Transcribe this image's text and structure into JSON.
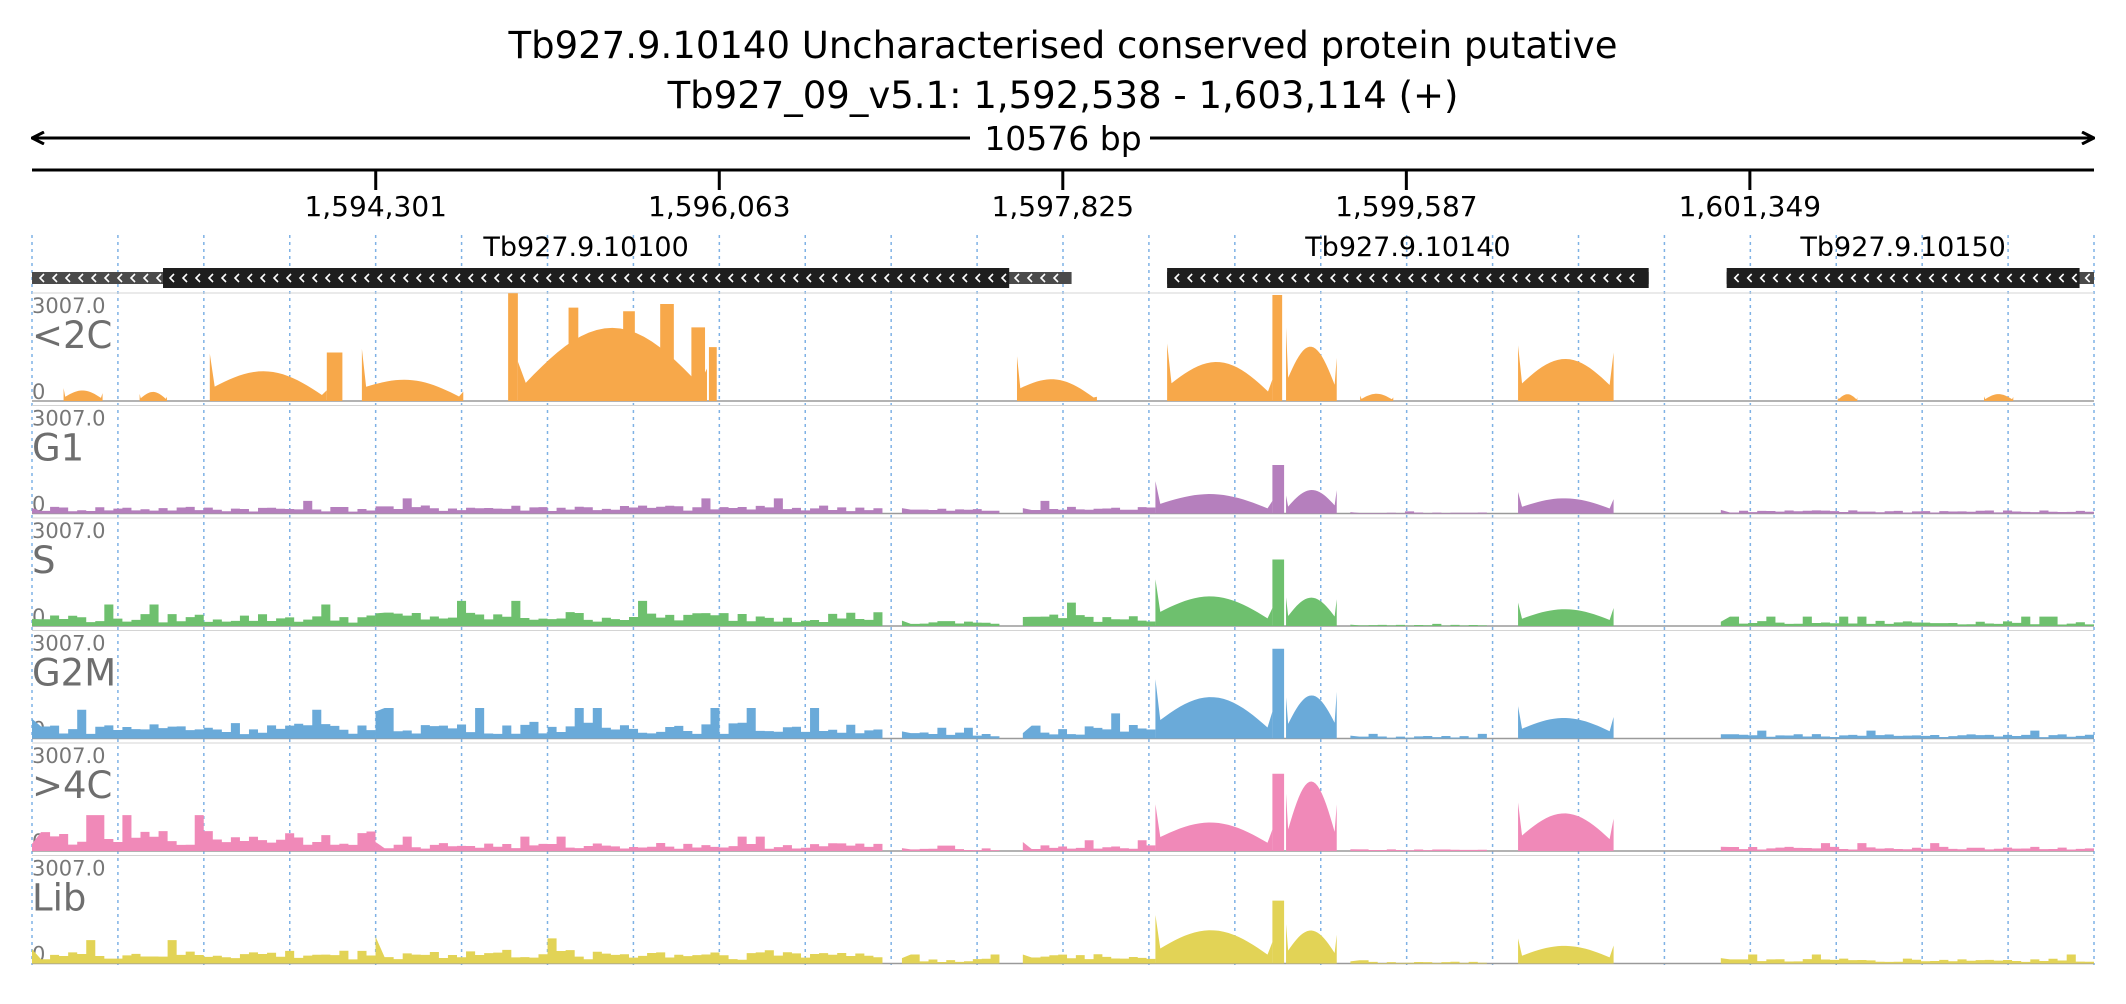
{
  "chart_data": {
    "type": "area",
    "title": "Tb927.9.10140  Uncharacterised conserved protein  putative",
    "subtitle": "Tb927_09_v5.1: 1,592,538 - 1,603,114 (+)",
    "span_label": "10576 bp",
    "x_range": [
      1592538,
      1603114
    ],
    "ticks": [
      {
        "value": 1594301,
        "label": "1,594,301"
      },
      {
        "value": 1596063,
        "label": "1,596,063"
      },
      {
        "value": 1597825,
        "label": "1,597,825"
      },
      {
        "value": 1599587,
        "label": "1,599,587"
      },
      {
        "value": 1601349,
        "label": "1,601,349"
      }
    ],
    "grid": true,
    "genes": [
      {
        "name": "Tb927.9.10100",
        "utr_start": 1592538,
        "start": 1593210,
        "end": 1597550,
        "utr_end": 1597870,
        "strand": "-"
      },
      {
        "name": "Tb927.9.10140",
        "utr_start": 1598360,
        "start": 1598360,
        "end": 1600830,
        "utr_end": 1600830,
        "strand": "-"
      },
      {
        "name": "Tb927.9.10150",
        "utr_start": 1601230,
        "start": 1601230,
        "end": 1603040,
        "utr_end": 1603114,
        "strand": "-"
      }
    ],
    "y_max_label": "3007.0",
    "y_min_label": "0",
    "y_max": 3007.0,
    "tracks": [
      {
        "name": "<2C",
        "color": "#f7a84a",
        "segments": [
          {
            "start": 1592700,
            "end": 1592900,
            "peak": 260,
            "shape": "dome",
            "edges": [
              360,
              220
            ]
          },
          {
            "start": 1593090,
            "end": 1593230,
            "peak": 250,
            "shape": "dome",
            "edges": [
              200,
              120
            ]
          },
          {
            "start": 1593450,
            "end": 1594050,
            "peak": 730,
            "shape": "dome",
            "edges": [
              1320,
              300
            ]
          },
          {
            "start": 1594050,
            "end": 1594130,
            "peak": 1350,
            "shape": "flat"
          },
          {
            "start": 1594230,
            "end": 1594750,
            "peak": 430,
            "shape": "dome",
            "edges": [
              1450,
              260
            ]
          },
          {
            "start": 1594980,
            "end": 1595030,
            "peak": 3000,
            "shape": "flat"
          },
          {
            "start": 1595030,
            "end": 1596000,
            "peak": 2100,
            "shape": "dome",
            "edges": [
              1100,
              900
            ]
          },
          {
            "start": 1595290,
            "end": 1595340,
            "peak": 2600,
            "shape": "flat"
          },
          {
            "start": 1595570,
            "end": 1595630,
            "peak": 2500,
            "shape": "flat"
          },
          {
            "start": 1595760,
            "end": 1595830,
            "peak": 2700,
            "shape": "flat"
          },
          {
            "start": 1595920,
            "end": 1595990,
            "peak": 2050,
            "shape": "flat"
          },
          {
            "start": 1596010,
            "end": 1596050,
            "peak": 1500,
            "shape": "flat"
          },
          {
            "start": 1597590,
            "end": 1598000,
            "peak": 500,
            "shape": "dome",
            "edges": [
              1250,
              120
            ]
          },
          {
            "start": 1598360,
            "end": 1598900,
            "peak": 950,
            "shape": "dome",
            "edges": [
              1600,
              600
            ]
          },
          {
            "start": 1598900,
            "end": 1598950,
            "peak": 2950,
            "shape": "flat"
          },
          {
            "start": 1598970,
            "end": 1599230,
            "peak": 1300,
            "shape": "dome",
            "edges": [
              2050,
              1200
            ]
          },
          {
            "start": 1599350,
            "end": 1599520,
            "peak": 200,
            "shape": "dome",
            "edges": [
              150,
              100
            ]
          },
          {
            "start": 1600160,
            "end": 1600650,
            "peak": 950,
            "shape": "dome",
            "edges": [
              1550,
              1350
            ]
          },
          {
            "start": 1601800,
            "end": 1601900,
            "peak": 190,
            "shape": "dome",
            "edges": [
              120,
              100
            ]
          },
          {
            "start": 1602550,
            "end": 1602700,
            "peak": 190,
            "shape": "dome",
            "edges": [
              130,
              110
            ]
          }
        ]
      },
      {
        "name": "G1",
        "color": "#b57fbd",
        "segments": [
          {
            "start": 1592538,
            "end": 1594300,
            "peak": 350,
            "shape": "noisy",
            "edges": [
              150,
              200
            ]
          },
          {
            "start": 1594300,
            "end": 1596900,
            "peak": 420,
            "shape": "noisy",
            "edges": [
              200,
              180
            ]
          },
          {
            "start": 1597000,
            "end": 1597500,
            "peak": 250,
            "shape": "noisy",
            "edges": [
              150,
              100
            ]
          },
          {
            "start": 1597620,
            "end": 1598300,
            "peak": 350,
            "shape": "noisy",
            "edges": [
              150,
              250
            ]
          },
          {
            "start": 1598300,
            "end": 1598900,
            "peak": 450,
            "shape": "dome",
            "edges": [
              900,
              350
            ]
          },
          {
            "start": 1598900,
            "end": 1598960,
            "peak": 1350,
            "shape": "flat"
          },
          {
            "start": 1598970,
            "end": 1599230,
            "peak": 600,
            "shape": "dome",
            "edges": [
              500,
              650
            ]
          },
          {
            "start": 1599300,
            "end": 1600000,
            "peak": 60,
            "shape": "noisy",
            "edges": [
              40,
              40
            ]
          },
          {
            "start": 1600160,
            "end": 1600650,
            "peak": 350,
            "shape": "dome",
            "edges": [
              600,
              400
            ]
          },
          {
            "start": 1601200,
            "end": 1603114,
            "peak": 160,
            "shape": "noisy",
            "edges": [
              100,
              320
            ]
          }
        ]
      },
      {
        "name": "S",
        "color": "#6ec06e",
        "segments": [
          {
            "start": 1592538,
            "end": 1594300,
            "peak": 600,
            "shape": "noisy",
            "edges": [
              200,
              800
            ]
          },
          {
            "start": 1594300,
            "end": 1596900,
            "peak": 700,
            "shape": "noisy",
            "edges": [
              350,
              200
            ]
          },
          {
            "start": 1597000,
            "end": 1597500,
            "peak": 250,
            "shape": "noisy",
            "edges": [
              150,
              100
            ]
          },
          {
            "start": 1597620,
            "end": 1598300,
            "peak": 650,
            "shape": "noisy",
            "edges": [
              250,
              600
            ]
          },
          {
            "start": 1598300,
            "end": 1598900,
            "peak": 700,
            "shape": "dome",
            "edges": [
              1300,
              500
            ]
          },
          {
            "start": 1598900,
            "end": 1598960,
            "peak": 1850,
            "shape": "flat"
          },
          {
            "start": 1598970,
            "end": 1599230,
            "peak": 700,
            "shape": "dome",
            "edges": [
              800,
              750
            ]
          },
          {
            "start": 1599300,
            "end": 1600000,
            "peak": 60,
            "shape": "noisy",
            "edges": [
              40,
              40
            ]
          },
          {
            "start": 1600160,
            "end": 1600650,
            "peak": 380,
            "shape": "dome",
            "edges": [
              650,
              500
            ]
          },
          {
            "start": 1601200,
            "end": 1603114,
            "peak": 260,
            "shape": "noisy",
            "edges": [
              120,
              180
            ]
          }
        ]
      },
      {
        "name": "G2M",
        "color": "#6aaad9",
        "segments": [
          {
            "start": 1592538,
            "end": 1594300,
            "peak": 800,
            "shape": "noisy",
            "edges": [
              550,
              700
            ]
          },
          {
            "start": 1594300,
            "end": 1596900,
            "peak": 850,
            "shape": "noisy",
            "edges": [
              750,
              300
            ]
          },
          {
            "start": 1597000,
            "end": 1597500,
            "peak": 300,
            "shape": "noisy",
            "edges": [
              200,
              150
            ]
          },
          {
            "start": 1597620,
            "end": 1598300,
            "peak": 700,
            "shape": "noisy",
            "edges": [
              150,
              550
            ]
          },
          {
            "start": 1598300,
            "end": 1598900,
            "peak": 1000,
            "shape": "dome",
            "edges": [
              1650,
              750
            ]
          },
          {
            "start": 1598900,
            "end": 1598960,
            "peak": 2500,
            "shape": "flat"
          },
          {
            "start": 1598970,
            "end": 1599230,
            "peak": 1050,
            "shape": "dome",
            "edges": [
              1150,
              1300
            ]
          },
          {
            "start": 1599300,
            "end": 1600000,
            "peak": 130,
            "shape": "noisy",
            "edges": [
              80,
              80
            ]
          },
          {
            "start": 1600160,
            "end": 1600650,
            "peak": 450,
            "shape": "dome",
            "edges": [
              900,
              600
            ]
          },
          {
            "start": 1601200,
            "end": 1603114,
            "peak": 220,
            "shape": "noisy",
            "edges": [
              120,
              120
            ]
          }
        ]
      },
      {
        "name": ">4C",
        "color": "#f089b8",
        "segments": [
          {
            "start": 1592538,
            "end": 1594300,
            "peak": 1000,
            "shape": "noisy",
            "edges": [
              200,
              750
            ]
          },
          {
            "start": 1594300,
            "end": 1596900,
            "peak": 400,
            "shape": "noisy",
            "edges": [
              250,
              120
            ]
          },
          {
            "start": 1597000,
            "end": 1597500,
            "peak": 150,
            "shape": "noisy",
            "edges": [
              80,
              80
            ]
          },
          {
            "start": 1597620,
            "end": 1598300,
            "peak": 300,
            "shape": "noisy",
            "edges": [
              250,
              200
            ]
          },
          {
            "start": 1598300,
            "end": 1598900,
            "peak": 650,
            "shape": "dome",
            "edges": [
              1300,
              600
            ]
          },
          {
            "start": 1598900,
            "end": 1598960,
            "peak": 2150,
            "shape": "flat"
          },
          {
            "start": 1598970,
            "end": 1599230,
            "peak": 1850,
            "shape": "dome",
            "edges": [
              1600,
              1300
            ]
          },
          {
            "start": 1599300,
            "end": 1600000,
            "peak": 90,
            "shape": "noisy",
            "edges": [
              50,
              50
            ]
          },
          {
            "start": 1600160,
            "end": 1600650,
            "peak": 900,
            "shape": "dome",
            "edges": [
              1350,
              900
            ]
          },
          {
            "start": 1601200,
            "end": 1603114,
            "peak": 220,
            "shape": "noisy",
            "edges": [
              120,
              700
            ]
          }
        ]
      },
      {
        "name": "Lib",
        "color": "#e2d356",
        "segments": [
          {
            "start": 1592538,
            "end": 1594300,
            "peak": 650,
            "shape": "noisy",
            "edges": [
              400,
              900
            ]
          },
          {
            "start": 1594300,
            "end": 1596900,
            "peak": 700,
            "shape": "noisy",
            "edges": [
              750,
              200
            ]
          },
          {
            "start": 1597000,
            "end": 1597500,
            "peak": 250,
            "shape": "noisy",
            "edges": [
              150,
              100
            ]
          },
          {
            "start": 1597620,
            "end": 1598300,
            "peak": 550,
            "shape": "noisy",
            "edges": [
              250,
              800
            ]
          },
          {
            "start": 1598300,
            "end": 1598900,
            "peak": 800,
            "shape": "dome",
            "edges": [
              1350,
              600
            ]
          },
          {
            "start": 1598900,
            "end": 1598960,
            "peak": 1750,
            "shape": "flat"
          },
          {
            "start": 1598970,
            "end": 1599230,
            "peak": 800,
            "shape": "dome",
            "edges": [
              1100,
              800
            ]
          },
          {
            "start": 1599300,
            "end": 1600000,
            "peak": 90,
            "shape": "noisy",
            "edges": [
              60,
              60
            ]
          },
          {
            "start": 1600160,
            "end": 1600650,
            "peak": 400,
            "shape": "dome",
            "edges": [
              700,
              500
            ]
          },
          {
            "start": 1601200,
            "end": 1603114,
            "peak": 250,
            "shape": "noisy",
            "edges": [
              150,
              450
            ]
          }
        ]
      }
    ]
  }
}
